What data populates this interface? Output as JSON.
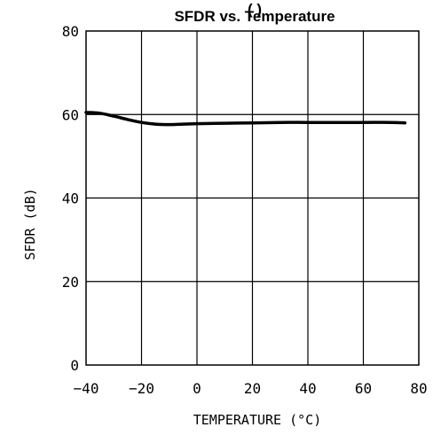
{
  "chart_data": {
    "type": "line",
    "title_partial": "(   )",
    "title": "SFDR vs. Temperature",
    "xlabel": "TEMPERATURE (°C)",
    "ylabel": "SFDR (dB)",
    "xlim": [
      -40,
      80
    ],
    "ylim": [
      0,
      80
    ],
    "x_ticks": [
      -40,
      -20,
      0,
      20,
      40,
      60,
      80
    ],
    "y_ticks": [
      0,
      20,
      40,
      60,
      80
    ],
    "grid": true,
    "series": [
      {
        "x": [
          -40,
          -35,
          -30,
          -25,
          -20,
          -15,
          -10,
          -5,
          0,
          10,
          20,
          30,
          40,
          50,
          60,
          70,
          75
        ],
        "y": [
          60.5,
          60.3,
          59.6,
          58.8,
          58.1,
          57.7,
          57.6,
          57.7,
          57.8,
          57.9,
          58.0,
          58.1,
          58.1,
          58.1,
          58.1,
          58.1,
          58.0
        ]
      }
    ]
  }
}
